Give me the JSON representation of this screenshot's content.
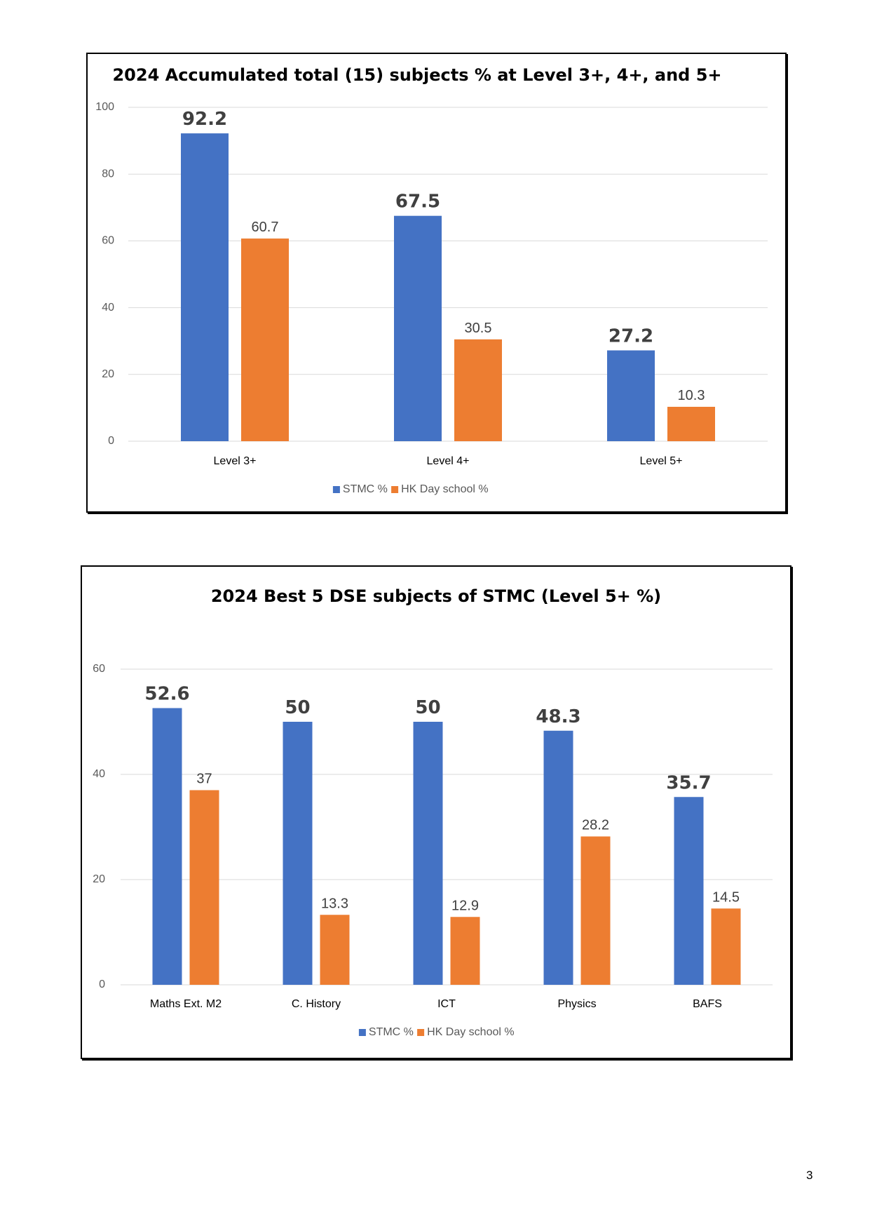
{
  "chart_data": [
    {
      "type": "bar",
      "title": "2024 Accumulated total (15) subjects % at Level 3+, 4+, and 5+",
      "categories": [
        "Level 3+",
        "Level 4+",
        "Level 5+"
      ],
      "series": [
        {
          "name": "STMC %",
          "values": [
            92.2,
            67.5,
            27.2
          ],
          "color": "#4472C4"
        },
        {
          "name": "HK Day school %",
          "values": [
            60.7,
            30.5,
            10.3
          ],
          "color": "#ED7D31"
        }
      ],
      "ylim": [
        0,
        100
      ],
      "yticks": [
        0,
        20,
        40,
        60,
        80,
        100
      ],
      "grid": true,
      "legend": "bottom"
    },
    {
      "type": "bar",
      "title": "2024 Best 5 DSE subjects of STMC (Level 5+ %)",
      "categories": [
        "Maths Ext. M2",
        "C. History",
        "ICT",
        "Physics",
        "BAFS"
      ],
      "series": [
        {
          "name": "STMC %",
          "values": [
            52.6,
            50,
            50,
            48.3,
            35.7
          ],
          "color": "#4472C4"
        },
        {
          "name": "HK Day school %",
          "values": [
            37,
            13.3,
            12.9,
            28.2,
            14.5
          ],
          "color": "#ED7D31"
        }
      ],
      "ylim": [
        0,
        60
      ],
      "yticks": [
        0,
        20,
        40,
        60
      ],
      "grid": true,
      "legend": "bottom"
    }
  ],
  "page": {
    "number": "3"
  }
}
